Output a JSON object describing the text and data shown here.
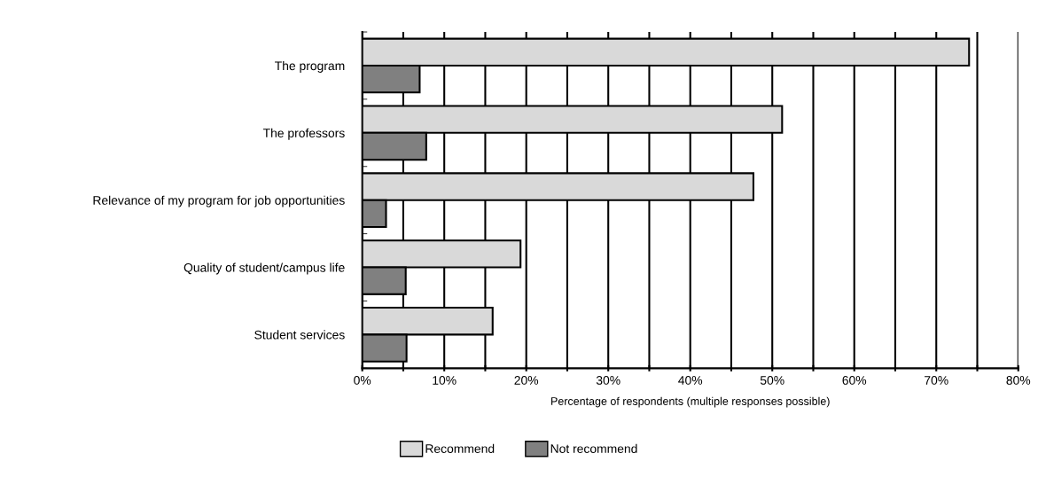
{
  "chart_data": {
    "type": "bar",
    "orientation": "horizontal",
    "xlabel": "Percentage of respondents (multiple responses possible)",
    "categories": [
      "The program",
      "The professors",
      "Relevance of my program for job opportunities",
      "Quality of student/campus life",
      "Student services"
    ],
    "series": [
      {
        "name": "Recommend",
        "color": "#d9d9d9",
        "values": [
          74.0,
          51.2,
          47.7,
          19.3,
          15.9
        ]
      },
      {
        "name": "Not recommend",
        "color": "#808080",
        "values": [
          7.0,
          7.8,
          2.9,
          5.3,
          5.4
        ]
      }
    ],
    "xlim": [
      0,
      80
    ],
    "xticks": [
      {
        "value": 0,
        "label": "0%"
      },
      {
        "value": 5,
        "label": null
      },
      {
        "value": 10,
        "label": "10%"
      },
      {
        "value": 15,
        "label": null
      },
      {
        "value": 20,
        "label": "20%"
      },
      {
        "value": 25,
        "label": null
      },
      {
        "value": 30,
        "label": "30%"
      },
      {
        "value": 35,
        "label": null
      },
      {
        "value": 40,
        "label": "40%"
      },
      {
        "value": 45,
        "label": null
      },
      {
        "value": 50,
        "label": "50%"
      },
      {
        "value": 55,
        "label": null
      },
      {
        "value": 60,
        "label": "60%"
      },
      {
        "value": 65,
        "label": null
      },
      {
        "value": 70,
        "label": "70%"
      },
      {
        "value": 75,
        "label": null
      },
      {
        "value": 80,
        "label": "80%"
      }
    ],
    "grid": "x",
    "legend": "bottom"
  }
}
